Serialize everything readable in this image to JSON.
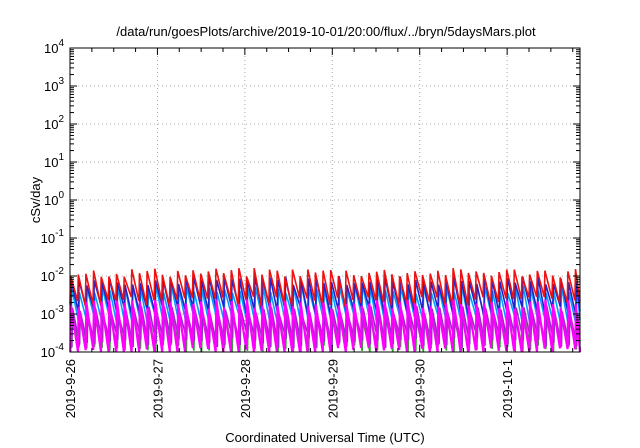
{
  "chart_data": {
    "type": "line",
    "title": "/data/run/goesPlots/archive/2019-10-01/20:00/flux/../bryn/5daysMars.plot",
    "xlabel": "Coordinated Universal Time (UTC)",
    "ylabel": "cSv/day",
    "y_scale": "log",
    "ylim": [
      0.0001,
      10000
    ],
    "x_range_days": [
      "2019-09-26",
      "2019-10-01T20:00"
    ],
    "grid": true,
    "x_ticks": [
      "2019-9-26",
      "2019-9-27",
      "2019-9-28",
      "2019-9-29",
      "2019-9-30",
      "2019-10-1"
    ],
    "y_ticks": [
      {
        "base": "10",
        "exp": "-4"
      },
      {
        "base": "10",
        "exp": "-3"
      },
      {
        "base": "10",
        "exp": "-2"
      },
      {
        "base": "10",
        "exp": "-1"
      },
      {
        "base": "10",
        "exp": "0"
      },
      {
        "base": "10",
        "exp": "1"
      },
      {
        "base": "10",
        "exp": "2"
      },
      {
        "base": "10",
        "exp": "3"
      },
      {
        "base": "10",
        "exp": "4"
      }
    ],
    "pattern": {
      "sawtooth_period_hours": 2.1,
      "note_hidden": ""
    },
    "series": [
      {
        "color": "#ee1111",
        "peak": 0.012,
        "trough": 0.0022,
        "phase": 0.0
      },
      {
        "color": "#ff00ff",
        "peak": 0.0018,
        "trough": 0.0001,
        "phase": 0.05
      },
      {
        "color": "#2222cc",
        "peak": 0.0075,
        "trough": 0.0012,
        "phase": 0.1
      },
      {
        "color": "#00a0ff",
        "peak": 0.0045,
        "trough": 0.0007,
        "phase": 0.15
      },
      {
        "color": "#22aa22",
        "peak": 0.0009,
        "trough": 0.00012,
        "phase": 0.2
      },
      {
        "color": "#9030c0",
        "peak": 0.0012,
        "trough": 0.00018,
        "phase": 0.25
      }
    ]
  }
}
